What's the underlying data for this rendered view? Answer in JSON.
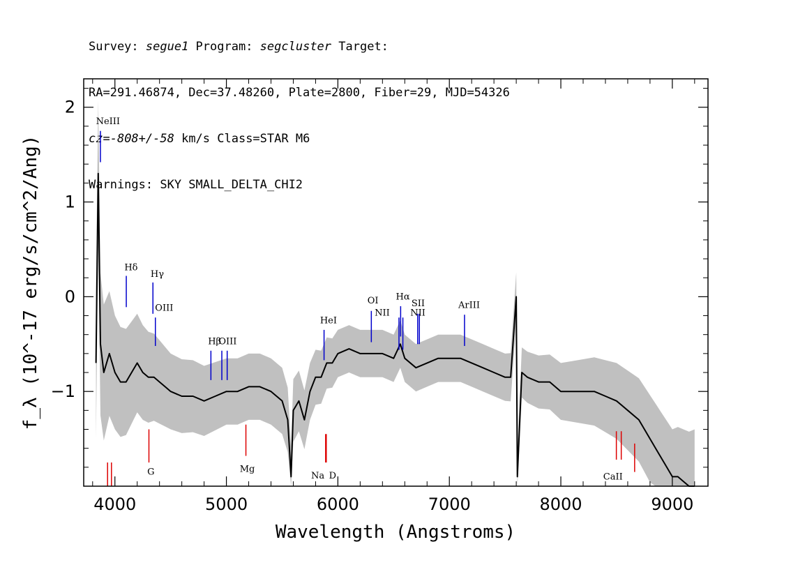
{
  "header": {
    "survey_prefix": "Survey: ",
    "survey_name": "segue1",
    "program_prefix": " Program: ",
    "program_name": "segcluster",
    "target_suffix": " Target:",
    "line2": "RA=291.46874, Dec=37.48260, Plate=2800, Fiber=29, MJD=54326",
    "cz_prefix": "cz=",
    "cz_value": "-808+/-58",
    "cz_suffix": " km/s Class=STAR M6",
    "line4": "Warnings: SKY SMALL_DELTA_CHI2"
  },
  "chart_data": {
    "type": "line",
    "xlabel": "Wavelength (Angstroms)",
    "ylabel": "f_λ (10^-17 erg/s/cm^2/Ang)",
    "xlim": [
      3720,
      9320
    ],
    "ylim": [
      -2.0,
      2.3
    ],
    "x_ticks": [
      4000,
      5000,
      6000,
      7000,
      8000,
      9000
    ],
    "y_ticks": [
      -1,
      0,
      1,
      2
    ],
    "colors": {
      "flux": "#000000",
      "error_band": "#c0c0c0",
      "emission_line": "#0000cc",
      "absorption_line": "#dd0000"
    },
    "series": [
      {
        "role": "flux",
        "x": [
          3830,
          3850,
          3870,
          3900,
          3950,
          4000,
          4050,
          4100,
          4150,
          4200,
          4250,
          4300,
          4350,
          4400,
          4450,
          4500,
          4600,
          4700,
          4800,
          4900,
          5000,
          5100,
          5200,
          5300,
          5400,
          5500,
          5550,
          5580,
          5600,
          5650,
          5700,
          5750,
          5800,
          5850,
          5900,
          5950,
          6000,
          6100,
          6200,
          6300,
          6400,
          6500,
          6560,
          6600,
          6700,
          6800,
          6900,
          7000,
          7100,
          7200,
          7300,
          7400,
          7500,
          7550,
          7600,
          7610,
          7650,
          7700,
          7800,
          7900,
          8000,
          8100,
          8200,
          8300,
          8400,
          8500,
          8600,
          8700,
          8750,
          8800,
          8850,
          8900,
          8950,
          9000,
          9050,
          9100,
          9150,
          9200
        ],
        "y": [
          -0.7,
          1.3,
          -0.5,
          -0.8,
          -0.6,
          -0.8,
          -0.9,
          -0.9,
          -0.8,
          -0.7,
          -0.8,
          -0.85,
          -0.85,
          -0.9,
          -0.95,
          -1.0,
          -1.05,
          -1.05,
          -1.1,
          -1.05,
          -1.0,
          -1.0,
          -0.95,
          -0.95,
          -1.0,
          -1.1,
          -1.3,
          -1.9,
          -1.2,
          -1.1,
          -1.3,
          -1.0,
          -0.85,
          -0.85,
          -0.7,
          -0.7,
          -0.6,
          -0.55,
          -0.6,
          -0.6,
          -0.6,
          -0.65,
          -0.5,
          -0.65,
          -0.75,
          -0.7,
          -0.65,
          -0.65,
          -0.65,
          -0.7,
          -0.75,
          -0.8,
          -0.85,
          -0.85,
          0.0,
          -1.9,
          -0.8,
          -0.85,
          -0.9,
          -0.9,
          -1.0,
          -1.0,
          -1.0,
          -1.0,
          -1.05,
          -1.1,
          -1.2,
          -1.3,
          -1.4,
          -1.5,
          -1.6,
          -1.7,
          -1.8,
          -1.9,
          -1.9,
          -1.95,
          -2.0,
          -2.0
        ]
      },
      {
        "role": "error",
        "x": [
          3830,
          4000,
          4500,
          5000,
          5500,
          6000,
          6500,
          7000,
          7500,
          8000,
          8500,
          9000,
          9200
        ],
        "halfwidth": [
          0.8,
          0.6,
          0.4,
          0.35,
          0.35,
          0.25,
          0.25,
          0.25,
          0.25,
          0.3,
          0.4,
          0.5,
          0.6
        ]
      }
    ],
    "emission_lines": [
      {
        "label": "NeIII",
        "x": 3870,
        "y_top": 1.75,
        "y_bottom": 1.42
      },
      {
        "label": "Hδ",
        "x": 4102,
        "y_top": 0.22,
        "y_bottom": -0.11
      },
      {
        "label": "Hγ",
        "x": 4341,
        "y_top": 0.15,
        "y_bottom": -0.18
      },
      {
        "label": "OIII",
        "x": 4363,
        "y_top": -0.22,
        "y_bottom": -0.52
      },
      {
        "label": "Hβ",
        "x": 4861,
        "y_top": -0.57,
        "y_bottom": -0.88
      },
      {
        "label": "OIII",
        "x": 4959,
        "y_top": -0.57,
        "y_bottom": -0.88
      },
      {
        "label": "OIII",
        "x": 5007,
        "y_top": -0.57,
        "y_bottom": -0.88
      },
      {
        "label": "HeI",
        "x": 5876,
        "y_top": -0.35,
        "y_bottom": -0.67
      },
      {
        "label": "OI",
        "x": 6300,
        "y_top": -0.15,
        "y_bottom": -0.48
      },
      {
        "label": "NII",
        "x": 6548,
        "y_top": -0.22,
        "y_bottom": -0.56
      },
      {
        "label": "Hα",
        "x": 6563,
        "y_top": -0.1,
        "y_bottom": -0.42
      },
      {
        "label": "NII",
        "x": 6583,
        "y_top": -0.22,
        "y_bottom": -0.56
      },
      {
        "label": "SII",
        "x": 6716,
        "y_top": -0.18,
        "y_bottom": -0.5
      },
      {
        "label": "SII",
        "x": 6731,
        "y_top": -0.18,
        "y_bottom": -0.5
      },
      {
        "label": "ArIII",
        "x": 7136,
        "y_top": -0.19,
        "y_bottom": -0.52
      }
    ],
    "emission_labels": [
      {
        "text": "NeIII",
        "x": 3830,
        "y": 1.82
      },
      {
        "text": "Hδ",
        "x": 4085,
        "y": 0.28
      },
      {
        "text": "Hγ",
        "x": 4320,
        "y": 0.21
      },
      {
        "text": "OIII",
        "x": 4360,
        "y": -0.15
      },
      {
        "text": "Hβ",
        "x": 4835,
        "y": -0.5
      },
      {
        "text": "OIII",
        "x": 4930,
        "y": -0.5
      },
      {
        "text": "HeI",
        "x": 5840,
        "y": -0.28
      },
      {
        "text": "OI",
        "x": 6265,
        "y": -0.07
      },
      {
        "text": "NII",
        "x": 6330,
        "y": -0.2
      },
      {
        "text": "Hα",
        "x": 6520,
        "y": -0.03
      },
      {
        "text": "SII",
        "x": 6660,
        "y": -0.1
      },
      {
        "text": "NII",
        "x": 6650,
        "y": -0.2
      },
      {
        "text": "ArIII",
        "x": 7080,
        "y": -0.12
      }
    ],
    "absorption_lines": [
      {
        "label": "CaII",
        "x": 3934,
        "y_top": -1.75,
        "y_bottom": -2.0
      },
      {
        "label": "CaII",
        "x": 3969,
        "y_top": -1.75,
        "y_bottom": -2.0
      },
      {
        "label": "G",
        "x": 4305,
        "y_top": -1.4,
        "y_bottom": -1.75
      },
      {
        "label": "Mg",
        "x": 5175,
        "y_top": -1.35,
        "y_bottom": -1.68
      },
      {
        "label": "Na",
        "x": 5890,
        "y_top": -1.45,
        "y_bottom": -1.75
      },
      {
        "label": "D",
        "x": 5896,
        "y_top": -1.45,
        "y_bottom": -1.75
      },
      {
        "label": "CaII",
        "x": 8498,
        "y_top": -1.42,
        "y_bottom": -1.72
      },
      {
        "label": "CaII",
        "x": 8542,
        "y_top": -1.42,
        "y_bottom": -1.72
      },
      {
        "label": "CaII",
        "x": 8662,
        "y_top": -1.55,
        "y_bottom": -1.85
      }
    ],
    "absorption_labels": [
      {
        "text": "G",
        "x": 4290,
        "y": -1.88
      },
      {
        "text": "Mg",
        "x": 5120,
        "y": -1.85
      },
      {
        "text": "Na",
        "x": 5760,
        "y": -1.92
      },
      {
        "text": "D",
        "x": 5920,
        "y": -1.92
      },
      {
        "text": "CaII",
        "x": 8380,
        "y": -1.93
      }
    ]
  }
}
